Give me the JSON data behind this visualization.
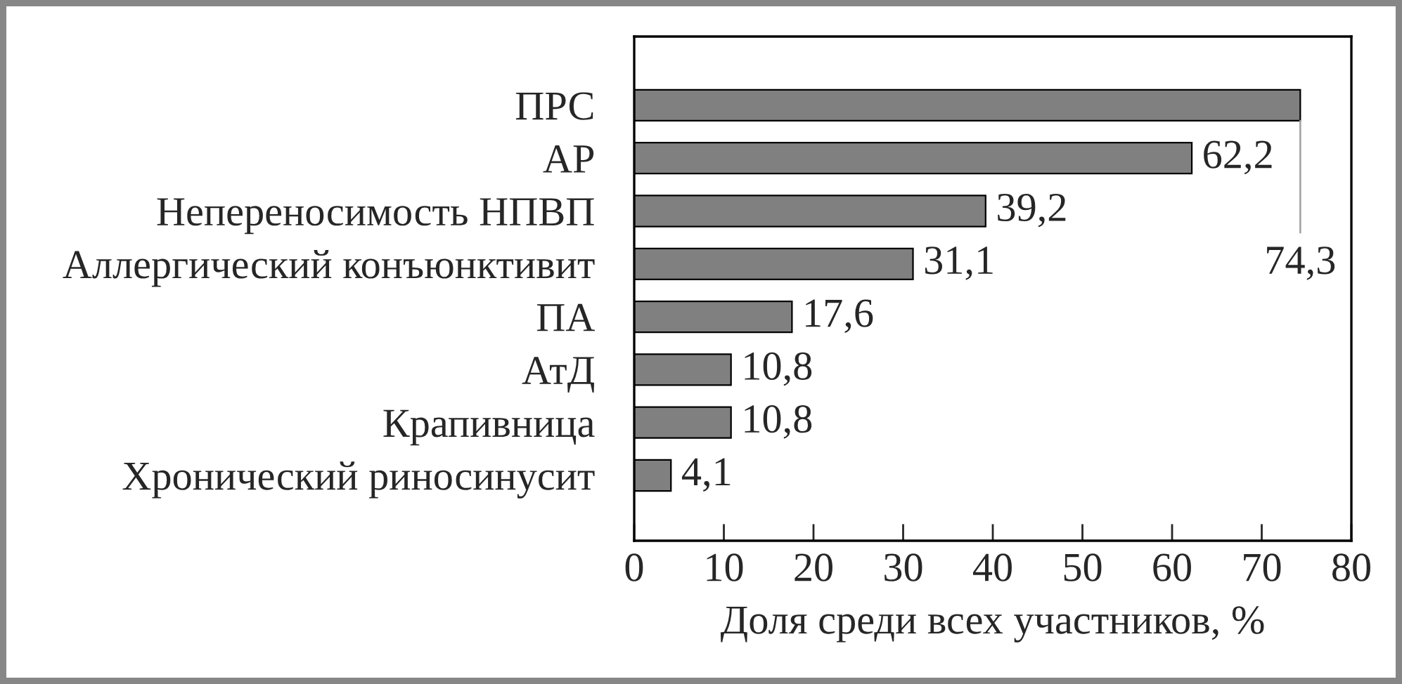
{
  "chart_data": {
    "type": "bar",
    "orientation": "horizontal",
    "categories": [
      "ПРС",
      "АР",
      "Непереносимость НПВП",
      "Аллергический конъюнктивит",
      "ПА",
      "АтД",
      "Крапивница",
      "Хронический риносинусит"
    ],
    "values": [
      74.3,
      62.2,
      39.2,
      31.1,
      17.6,
      10.8,
      10.8,
      4.1
    ],
    "value_labels": [
      "74,3",
      "62,2",
      "39,2",
      "31,1",
      "17,6",
      "10,8",
      "10,8",
      "4,1"
    ],
    "color": "#808080",
    "xlabel": "Доля среди всех участников, %",
    "xlim": [
      0,
      80
    ],
    "xticks": [
      0,
      10,
      20,
      30,
      40,
      50,
      60,
      70,
      80
    ]
  }
}
